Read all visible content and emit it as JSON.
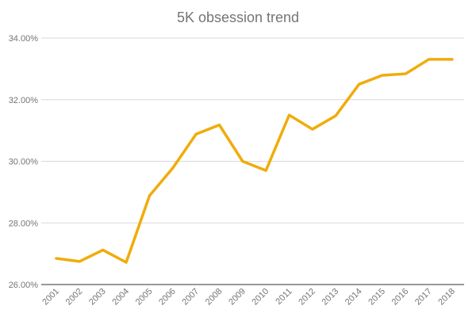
{
  "chart_data": {
    "type": "line",
    "title": "5K obsession trend",
    "xlabel": "",
    "ylabel": "",
    "categories": [
      "2001",
      "2002",
      "2003",
      "2004",
      "2005",
      "2006",
      "2007",
      "2008",
      "2009",
      "2010",
      "2011",
      "2012",
      "2013",
      "2014",
      "2015",
      "2016",
      "2017",
      "2018"
    ],
    "series": [
      {
        "values": [
          26.85,
          26.75,
          27.12,
          26.72,
          28.88,
          29.78,
          30.88,
          31.18,
          30.0,
          29.7,
          31.5,
          31.04,
          31.48,
          32.5,
          32.79,
          32.84,
          33.31,
          33.31
        ]
      }
    ],
    "ylim": [
      26,
      34
    ],
    "yticks": [
      "26.00%",
      "28.00%",
      "30.00%",
      "32.00%",
      "34.00%"
    ],
    "grid": true,
    "colors": {
      "line": "#F0AC0C"
    }
  }
}
